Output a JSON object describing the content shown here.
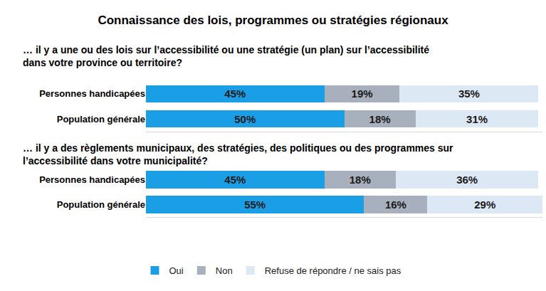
{
  "title": "Connaissance des lois, programmes ou stratégies régionaux",
  "chart_data": [
    {
      "type": "bar",
      "orientation": "horizontal",
      "stacked": true,
      "data_labels": true,
      "tick_labels": "y",
      "legend": "bottom",
      "subtitle": "… il y a une ou des lois sur l’accessibilité ou une stratégie (un plan) sur l’accessibilité dans votre province ou territoire?",
      "categories": [
        "Personnes handicapées",
        "Population générale"
      ],
      "xlim": [
        0,
        100
      ],
      "series": [
        {
          "name": "Oui",
          "color": "#1a9fe6",
          "values": [
            45,
            50
          ],
          "value_labels": [
            "45%",
            "50%"
          ]
        },
        {
          "name": "Non",
          "color": "#a8b0bd",
          "values": [
            19,
            18
          ],
          "value_labels": [
            "19%",
            "18%"
          ]
        },
        {
          "name": "Refuse de répondre / ne sais pas",
          "color": "#dde8f5",
          "values": [
            35,
            31
          ],
          "value_labels": [
            "35%",
            "31%"
          ]
        }
      ]
    },
    {
      "type": "bar",
      "orientation": "horizontal",
      "stacked": true,
      "data_labels": true,
      "tick_labels": "y",
      "legend": "bottom",
      "subtitle": "… il y a des règlements municipaux, des stratégies, des politiques ou des programmes sur l’accessibilité dans votre municipalité?",
      "categories": [
        "Personnes handicapées",
        "Population générale"
      ],
      "xlim": [
        0,
        100
      ],
      "series": [
        {
          "name": "Oui",
          "color": "#1a9fe6",
          "values": [
            45,
            55
          ],
          "value_labels": [
            "45%",
            "55%"
          ]
        },
        {
          "name": "Non",
          "color": "#a8b0bd",
          "values": [
            18,
            16
          ],
          "value_labels": [
            "18%",
            "16%"
          ]
        },
        {
          "name": "Refuse de répondre / ne sais pas",
          "color": "#dde8f5",
          "values": [
            36,
            29
          ],
          "value_labels": [
            "36%",
            "29%"
          ]
        }
      ]
    }
  ]
}
